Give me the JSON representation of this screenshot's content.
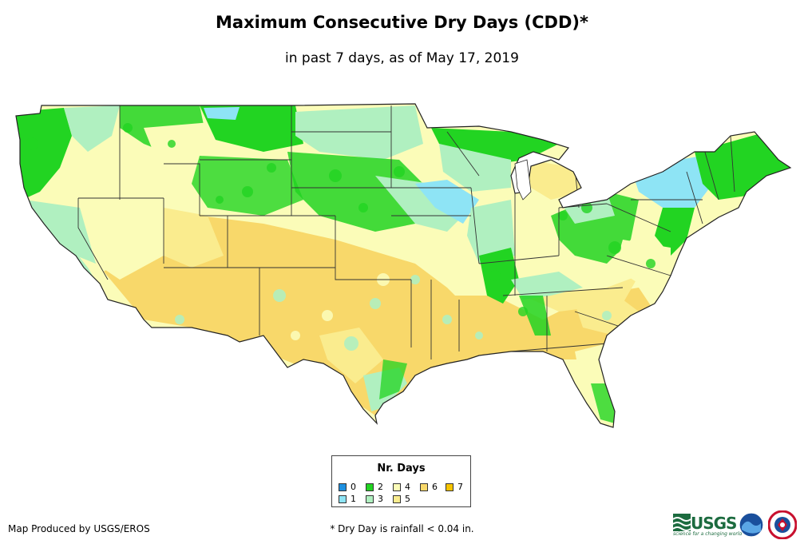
{
  "title": "Maximum Consecutive Dry Days (CDD)*",
  "subtitle": "in past 7 days, as of May 17, 2019",
  "legend": {
    "title": "Nr. Days",
    "items": [
      {
        "label": "0",
        "color": "#1e90e0"
      },
      {
        "label": "1",
        "color": "#8ee4f5"
      },
      {
        "label": "2",
        "color": "#22d422"
      },
      {
        "label": "3",
        "color": "#b0f0c0"
      },
      {
        "label": "4",
        "color": "#fbfcb8"
      },
      {
        "label": "5",
        "color": "#faec8e"
      },
      {
        "label": "6",
        "color": "#f8d86a"
      },
      {
        "label": "7",
        "color": "#f6c400"
      }
    ]
  },
  "credit": "Map Produced by USGS/EROS",
  "footnote": "* Dry Day is rainfall < 0.04 in.",
  "logos": {
    "usgs": {
      "text": "USGS",
      "tagline": "science for a changing world",
      "icon": "usgs-wave-icon"
    },
    "noaa": {
      "icon": "noaa-logo-icon"
    },
    "nws": {
      "icon": "nws-logo-icon"
    }
  },
  "map": {
    "region": "Contiguous United States",
    "icon": "us-map-icon"
  }
}
